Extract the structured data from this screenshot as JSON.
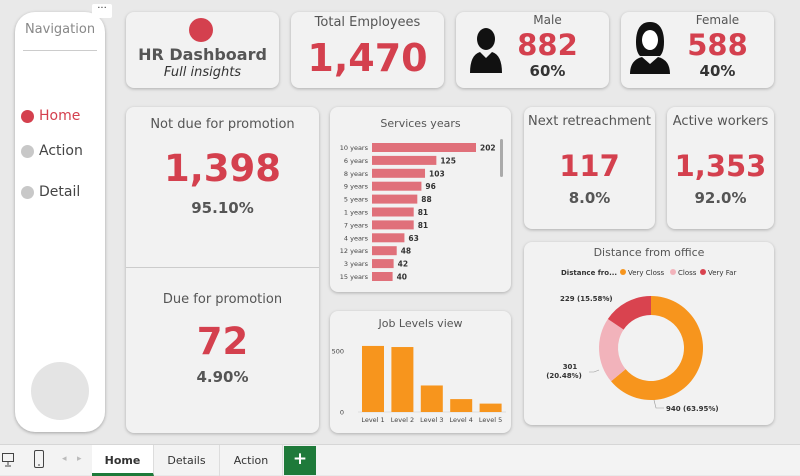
{
  "nav": {
    "title": "Navigation",
    "items": [
      "Home",
      "Action",
      "Detail"
    ]
  },
  "header": {
    "title": "HR Dashboard",
    "subtitle": "Full insights"
  },
  "total": {
    "label": "Total Employees",
    "value": "1,470"
  },
  "male": {
    "label": "Male",
    "value": "882",
    "pct": "60%"
  },
  "female": {
    "label": "Female",
    "value": "588",
    "pct": "40%"
  },
  "notdue": {
    "label": "Not due for promotion",
    "value": "1,398",
    "pct": "95.10%"
  },
  "due": {
    "label": "Due for promotion",
    "value": "72",
    "pct": "4.90%"
  },
  "retrench": {
    "label": "Next retreachment",
    "value": "117",
    "pct": "8.0%"
  },
  "active": {
    "label": "Active workers",
    "value": "1,353",
    "pct": "92.0%"
  },
  "colors": {
    "accent": "#d4404e",
    "bar": "#e0707a",
    "orange": "#f7951d",
    "pink": "#f2b3bb",
    "red": "#d9434f"
  },
  "chart_data": [
    {
      "type": "bar",
      "orientation": "horizontal",
      "title": "Services years",
      "categories": [
        "10 years",
        "6 years",
        "8 years",
        "9 years",
        "5 years",
        "1 years",
        "7 years",
        "4 years",
        "12 years",
        "3 years",
        "15 years"
      ],
      "values": [
        202,
        125,
        103,
        96,
        88,
        81,
        81,
        63,
        48,
        42,
        40
      ]
    },
    {
      "type": "bar",
      "title": "Job Levels view",
      "categories": [
        "Level 1",
        "Level 2",
        "Level 3",
        "Level 4",
        "Level 5"
      ],
      "values": [
        543,
        534,
        218,
        106,
        69
      ],
      "ylim": [
        0,
        600
      ],
      "yticks": [
        "0",
        "500"
      ]
    },
    {
      "type": "pie",
      "subtype": "donut",
      "title": "Distance from office",
      "legend_title": "Distance fro...",
      "labels": [
        "Very Closs",
        "Closs",
        "Very Far"
      ],
      "values": [
        940,
        301,
        229
      ],
      "value_labels": [
        "940 (63.95%)",
        "301 (20.48%)",
        "229 (15.58%)"
      ],
      "colors": [
        "#f7951d",
        "#f2b3bb",
        "#d9434f"
      ]
    }
  ],
  "tabs": {
    "items": [
      "Home",
      "Details",
      "Action"
    ],
    "add": "+"
  }
}
